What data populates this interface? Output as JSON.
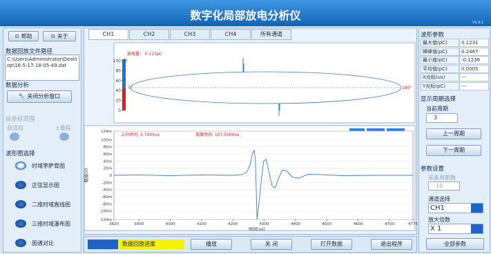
{
  "header": {
    "title": "数字化局部放电分析仪",
    "version": "V1.0.1"
  },
  "left_panel": {
    "help": "帮助",
    "about": "关于",
    "file_path_title": "数据回放文件路径",
    "file_path": "C:\\Users\\Administrator\\Desktop\\16-5-17-18-05-49.dat",
    "analysis_title": "数据分析",
    "close_analysis": "关闭分析窗口",
    "y_range_title": "纵坐标范围",
    "y_range_options": [
      "自适应",
      "±量程"
    ],
    "waveform_title": "波形图选择",
    "waveform_options": [
      "时域李萨育图",
      "正弦显示图",
      "二维时域直线图",
      "三维时域瀑布图",
      "图谱对比"
    ]
  },
  "tabs": [
    "CH1",
    "CH2",
    "CH3",
    "CH4",
    "所有通道"
  ],
  "phase_chart": {
    "annotation": "放电量： 0.123pC",
    "y_unit": "%",
    "ylim": [
      0,
      100
    ],
    "yticks": [
      0,
      20,
      40,
      60,
      80,
      100
    ],
    "phase_labels": [
      "0°",
      "180°"
    ]
  },
  "waveform_chart": {
    "type": "line",
    "annotations": [
      "上升时间: 3.7000us",
      "宽度时间: 107.5000us"
    ],
    "y_label": "幅值(V)",
    "x_label": "时间(us)",
    "color": "#3a78c8",
    "xlim": [
      3820,
      4775
    ],
    "xticks": [
      3820,
      3900,
      4000,
      4100,
      4200,
      4300,
      4400,
      4500,
      4600,
      4700,
      4775
    ],
    "ylim": [
      -0.124,
      0.124
    ],
    "yticks": [
      {
        "value": 0.124,
        "label": "124m"
      },
      {
        "value": 0.1,
        "label": "100m"
      },
      {
        "value": 0.08,
        "label": "80m"
      },
      {
        "value": 0.06,
        "label": "60m"
      },
      {
        "value": 0.04,
        "label": "40m"
      },
      {
        "value": 0.02,
        "label": "20m"
      },
      0,
      {
        "value": -0.02,
        "label": "-20m"
      },
      {
        "value": -0.04,
        "label": "-40m"
      },
      {
        "value": -0.06,
        "label": "-60m"
      },
      {
        "value": -0.08,
        "label": "-80m"
      },
      {
        "value": -0.1,
        "label": "-100m"
      },
      {
        "value": -0.124,
        "label": "-124m"
      }
    ],
    "x": [
      3820,
      3900,
      4000,
      4100,
      4200,
      4230,
      4245,
      4255,
      4262,
      4268,
      4272,
      4277,
      4283,
      4290,
      4298,
      4306,
      4315,
      4325,
      4335,
      4345,
      4358,
      4372,
      4390,
      4410,
      4440,
      4480,
      4550,
      4650,
      4775
    ],
    "values": [
      0,
      0.001,
      -0.001,
      0.001,
      0,
      0.002,
      0.01,
      0.03,
      0.06,
      0.07,
      0.04,
      -0.124,
      -0.08,
      -0.02,
      0.04,
      0.045,
      0.01,
      -0.03,
      -0.035,
      -0.01,
      0.015,
      0.012,
      -0.005,
      -0.008,
      0.003,
      0.002,
      -0.001,
      0,
      0
    ]
  },
  "bottom_bar": {
    "progress_label": "数据回放进度",
    "play": "播放",
    "close": "关 闭",
    "open": "打开数据",
    "exit": "退出程序"
  },
  "right_panel": {
    "params_title": "波形参数",
    "params": [
      [
        "最大值(pC)",
        0.1231
      ],
      [
        "峰峰值(pC)",
        0.2467
      ],
      [
        "最小值(pC)",
        -0.1236
      ],
      [
        "平均值(pC)",
        0.0005
      ],
      [
        "X光标(us)",
        "---"
      ],
      [
        "Y光标(pC)",
        "---"
      ]
    ],
    "period_title": "显示周期选择",
    "current_period_label": "当前周期",
    "current_period": 3,
    "prev": "上一周期",
    "next": "下一周期",
    "settings_title": "参数设置",
    "sample_count_label": "采集周期数",
    "sample_count": 10,
    "channel_label": "通道选择",
    "channel": "CH1",
    "gain_label": "放大倍数",
    "gain": "X 1",
    "all_params": "全部参数"
  }
}
